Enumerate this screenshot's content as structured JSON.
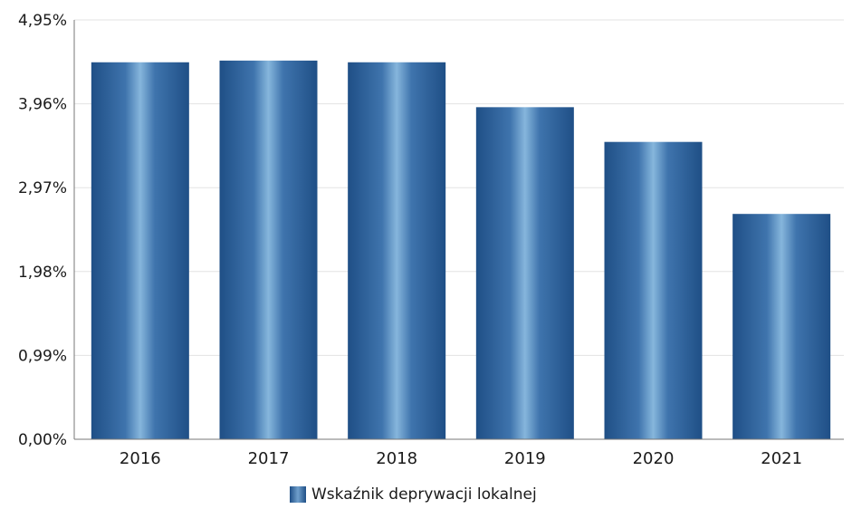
{
  "chart_data": {
    "type": "bar",
    "categories": [
      "2016",
      "2017",
      "2018",
      "2019",
      "2020",
      "2021"
    ],
    "series": [
      {
        "name": "Wskaźnik deprywacji lokalnej",
        "values": [
          4.45,
          4.47,
          4.45,
          3.92,
          3.51,
          2.66
        ]
      }
    ],
    "y_ticks": [
      "0,00%",
      "0,99%",
      "1,98%",
      "2,97%",
      "3,96%",
      "4,95%"
    ],
    "ylim": [
      0,
      4.95
    ],
    "grid": true,
    "legend_position": "bottom",
    "colors": {
      "bar_dark": "#1f4f86",
      "bar_light": "#7fb0d8",
      "grid": "#e3e3e3",
      "axis": "#777777"
    }
  }
}
